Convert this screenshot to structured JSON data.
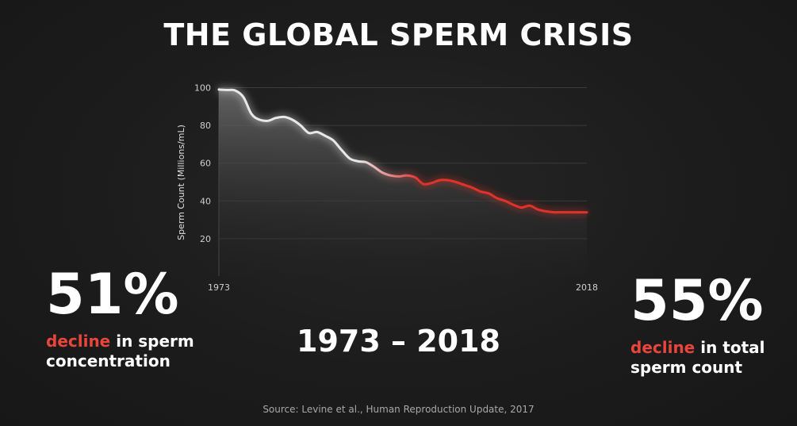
{
  "title": "THE GLOBAL SPERM CRISIS",
  "chart_data": {
    "type": "area",
    "ylabel": "Sperm Count (Millions/mL)",
    "xlabel": "",
    "xlim": [
      1973,
      2018
    ],
    "ylim": [
      0,
      100
    ],
    "xticks": [
      "1973",
      "2018"
    ],
    "yticks": [
      20,
      40,
      60,
      80,
      100
    ],
    "grid": true,
    "x": [
      1973,
      1974,
      1975,
      1976,
      1977,
      1978,
      1979,
      1980,
      1981,
      1982,
      1983,
      1984,
      1985,
      1986,
      1987,
      1988,
      1989,
      1990,
      1991,
      1992,
      1993,
      1994,
      1995,
      1996,
      1997,
      1998,
      1999,
      2000,
      2001,
      2002,
      2003,
      2004,
      2005,
      2006,
      2007,
      2008,
      2009,
      2010,
      2011,
      2012,
      2013,
      2014,
      2015,
      2016,
      2017,
      2018
    ],
    "y": [
      99,
      98.8,
      98.5,
      95,
      86,
      83,
      82.5,
      84,
      84.5,
      83,
      80,
      76,
      76.5,
      74.5,
      72,
      67,
      62.5,
      61,
      60.5,
      58,
      55,
      53.5,
      53,
      53.5,
      52.5,
      49,
      49.5,
      51,
      51,
      50,
      48.5,
      47,
      45,
      44,
      41.5,
      40,
      38,
      36.5,
      37.5,
      35.5,
      34.5,
      34,
      34,
      34,
      34,
      34
    ],
    "colors": {
      "line_start": "#e8e8e8",
      "line_end": "#e0302a",
      "fill": "#6a6a6a"
    }
  },
  "stats": {
    "left": {
      "value": "51%",
      "highlight": "decline",
      "rest": " in sperm",
      "line2": "concentration"
    },
    "right": {
      "value": "55%",
      "highlight": "decline",
      "rest": " in total",
      "line2": "sperm count"
    }
  },
  "range": "1973 – 2018",
  "source": "Source: Levine et al., Human Reproduction Update, 2017",
  "colors": {
    "accent": "#e8453c",
    "background": "#1c1c1c"
  }
}
